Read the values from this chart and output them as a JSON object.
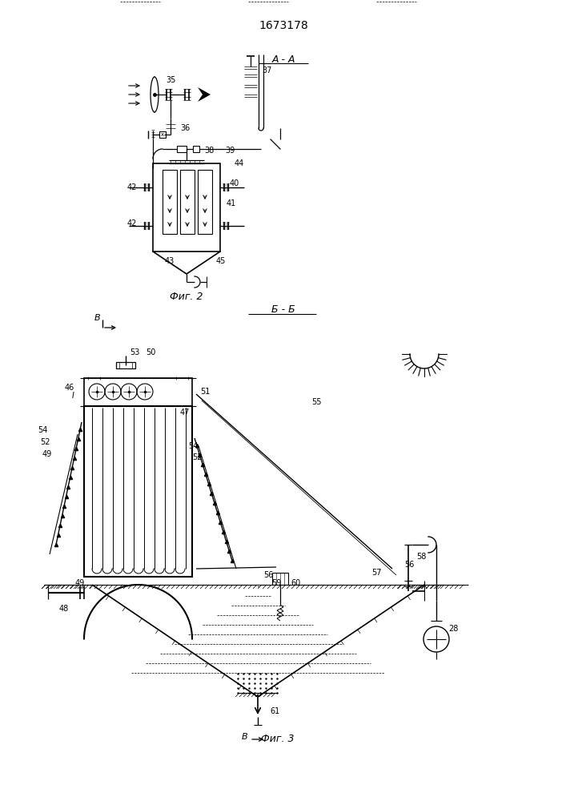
{
  "title": "1673178",
  "bg_color": "#ffffff",
  "line_color": "#000000",
  "fig_width": 7.07,
  "fig_height": 10.0,
  "label_AA": "А - А",
  "label_BB": "Б - Б",
  "fig2_label": "Фиг. 2",
  "fig3_label": "Фиг. 3",
  "label_B_cut": "В"
}
